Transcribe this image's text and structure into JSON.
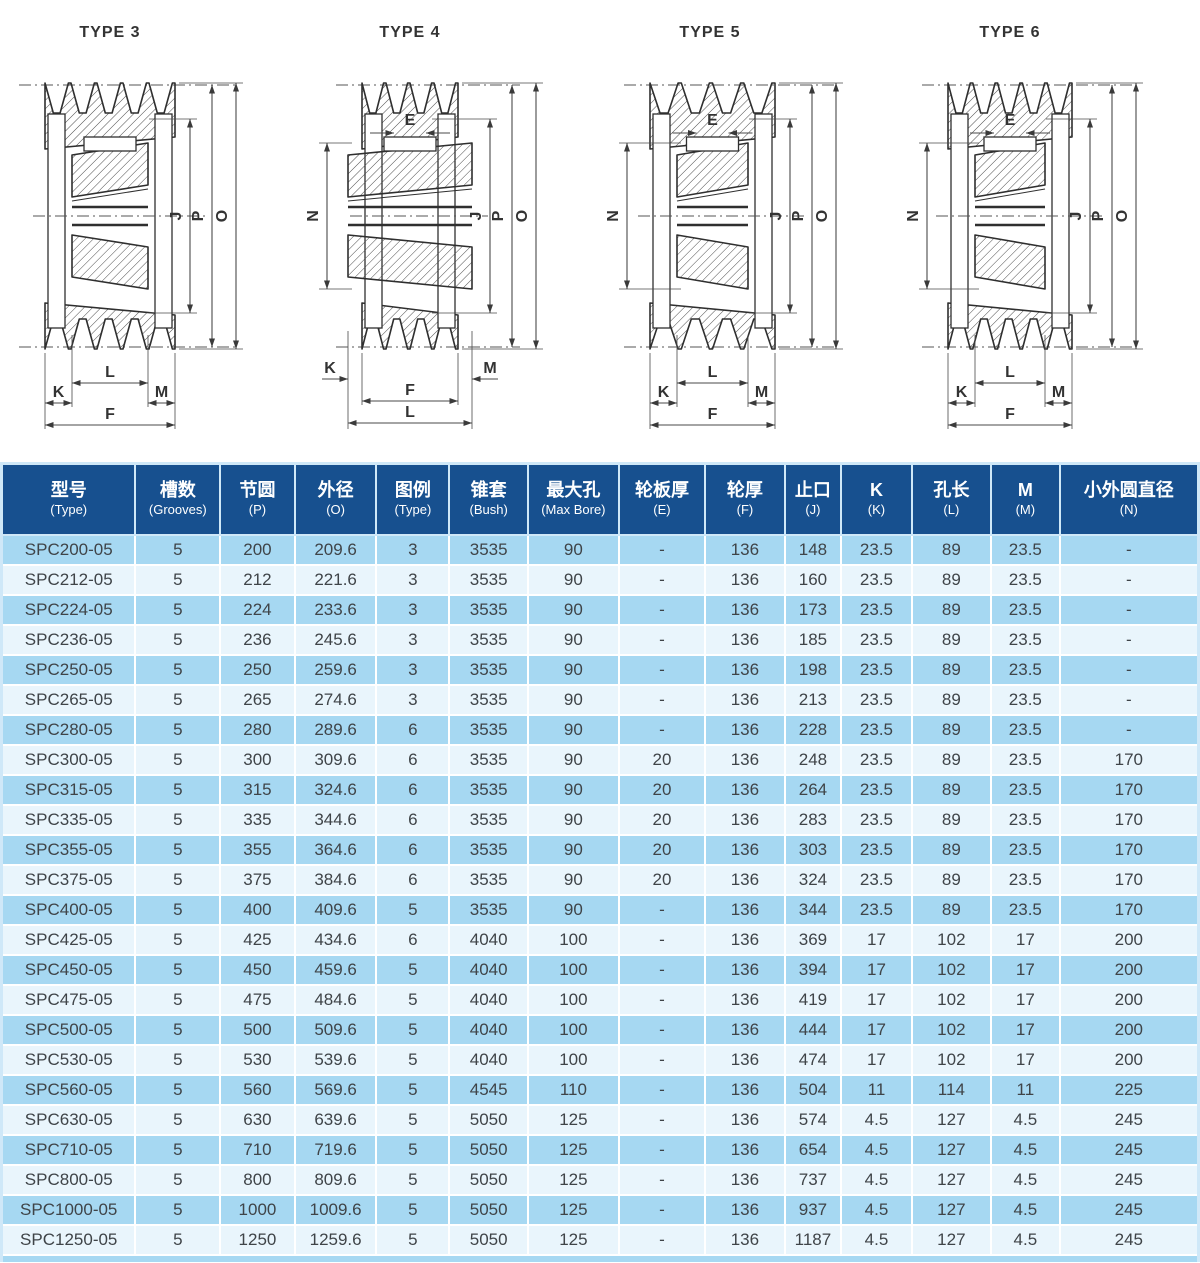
{
  "page": {
    "background": "#ffffff"
  },
  "diagrams": [
    {
      "title": "TYPE 3",
      "dim_right": [
        "J",
        "P",
        "O"
      ],
      "dim_left": "",
      "dim_e": "",
      "dim_bottom": {
        "inner": "L",
        "left": "K",
        "right": "M",
        "full": "F"
      }
    },
    {
      "title": "TYPE 4",
      "dim_right": [
        "J",
        "P",
        "O"
      ],
      "dim_left": "N",
      "dim_e": "E",
      "dim_bottom": {
        "inner": "F",
        "left": "K",
        "right": "M",
        "full": "L"
      }
    },
    {
      "title": "TYPE 5",
      "dim_right": [
        "J",
        "P",
        "O"
      ],
      "dim_left": "N",
      "dim_e": "E",
      "dim_bottom": {
        "inner": "L",
        "left": "K",
        "right": "M",
        "full": "F"
      }
    },
    {
      "title": "TYPE 6",
      "dim_right": [
        "J",
        "P",
        "O"
      ],
      "dim_left": "N",
      "dim_e": "E",
      "dim_bottom": {
        "inner": "L",
        "left": "K",
        "right": "M",
        "full": "F"
      }
    }
  ],
  "table": {
    "columns": [
      {
        "cn": "型号",
        "en": "(Type)"
      },
      {
        "cn": "槽数",
        "en": "(Grooves)"
      },
      {
        "cn": "节圆",
        "en": "(P)"
      },
      {
        "cn": "外径",
        "en": "(O)"
      },
      {
        "cn": "图例",
        "en": "(Type)"
      },
      {
        "cn": "锥套",
        "en": "(Bush)"
      },
      {
        "cn": "最大孔",
        "en": "(Max Bore)"
      },
      {
        "cn": "轮板厚",
        "en": "(E)"
      },
      {
        "cn": "轮厚",
        "en": "(F)"
      },
      {
        "cn": "止口",
        "en": "(J)"
      },
      {
        "cn": "K",
        "en": "(K)"
      },
      {
        "cn": "孔长",
        "en": "(L)"
      },
      {
        "cn": "M",
        "en": "(M)"
      },
      {
        "cn": "小外圆直径",
        "en": "(N)"
      }
    ],
    "rows": [
      [
        "SPC200-05",
        "5",
        "200",
        "209.6",
        "3",
        "3535",
        "90",
        "-",
        "136",
        "148",
        "23.5",
        "89",
        "23.5",
        "-"
      ],
      [
        "SPC212-05",
        "5",
        "212",
        "221.6",
        "3",
        "3535",
        "90",
        "-",
        "136",
        "160",
        "23.5",
        "89",
        "23.5",
        "-"
      ],
      [
        "SPC224-05",
        "5",
        "224",
        "233.6",
        "3",
        "3535",
        "90",
        "-",
        "136",
        "173",
        "23.5",
        "89",
        "23.5",
        "-"
      ],
      [
        "SPC236-05",
        "5",
        "236",
        "245.6",
        "3",
        "3535",
        "90",
        "-",
        "136",
        "185",
        "23.5",
        "89",
        "23.5",
        "-"
      ],
      [
        "SPC250-05",
        "5",
        "250",
        "259.6",
        "3",
        "3535",
        "90",
        "-",
        "136",
        "198",
        "23.5",
        "89",
        "23.5",
        "-"
      ],
      [
        "SPC265-05",
        "5",
        "265",
        "274.6",
        "3",
        "3535",
        "90",
        "-",
        "136",
        "213",
        "23.5",
        "89",
        "23.5",
        "-"
      ],
      [
        "SPC280-05",
        "5",
        "280",
        "289.6",
        "6",
        "3535",
        "90",
        "-",
        "136",
        "228",
        "23.5",
        "89",
        "23.5",
        "-"
      ],
      [
        "SPC300-05",
        "5",
        "300",
        "309.6",
        "6",
        "3535",
        "90",
        "20",
        "136",
        "248",
        "23.5",
        "89",
        "23.5",
        "170"
      ],
      [
        "SPC315-05",
        "5",
        "315",
        "324.6",
        "6",
        "3535",
        "90",
        "20",
        "136",
        "264",
        "23.5",
        "89",
        "23.5",
        "170"
      ],
      [
        "SPC335-05",
        "5",
        "335",
        "344.6",
        "6",
        "3535",
        "90",
        "20",
        "136",
        "283",
        "23.5",
        "89",
        "23.5",
        "170"
      ],
      [
        "SPC355-05",
        "5",
        "355",
        "364.6",
        "6",
        "3535",
        "90",
        "20",
        "136",
        "303",
        "23.5",
        "89",
        "23.5",
        "170"
      ],
      [
        "SPC375-05",
        "5",
        "375",
        "384.6",
        "6",
        "3535",
        "90",
        "20",
        "136",
        "324",
        "23.5",
        "89",
        "23.5",
        "170"
      ],
      [
        "SPC400-05",
        "5",
        "400",
        "409.6",
        "5",
        "3535",
        "90",
        "-",
        "136",
        "344",
        "23.5",
        "89",
        "23.5",
        "170"
      ],
      [
        "SPC425-05",
        "5",
        "425",
        "434.6",
        "6",
        "4040",
        "100",
        "-",
        "136",
        "369",
        "17",
        "102",
        "17",
        "200"
      ],
      [
        "SPC450-05",
        "5",
        "450",
        "459.6",
        "5",
        "4040",
        "100",
        "-",
        "136",
        "394",
        "17",
        "102",
        "17",
        "200"
      ],
      [
        "SPC475-05",
        "5",
        "475",
        "484.6",
        "5",
        "4040",
        "100",
        "-",
        "136",
        "419",
        "17",
        "102",
        "17",
        "200"
      ],
      [
        "SPC500-05",
        "5",
        "500",
        "509.6",
        "5",
        "4040",
        "100",
        "-",
        "136",
        "444",
        "17",
        "102",
        "17",
        "200"
      ],
      [
        "SPC530-05",
        "5",
        "530",
        "539.6",
        "5",
        "4040",
        "100",
        "-",
        "136",
        "474",
        "17",
        "102",
        "17",
        "200"
      ],
      [
        "SPC560-05",
        "5",
        "560",
        "569.6",
        "5",
        "4545",
        "110",
        "-",
        "136",
        "504",
        "11",
        "114",
        "11",
        "225"
      ],
      [
        "SPC630-05",
        "5",
        "630",
        "639.6",
        "5",
        "5050",
        "125",
        "-",
        "136",
        "574",
        "4.5",
        "127",
        "4.5",
        "245"
      ],
      [
        "SPC710-05",
        "5",
        "710",
        "719.6",
        "5",
        "5050",
        "125",
        "-",
        "136",
        "654",
        "4.5",
        "127",
        "4.5",
        "245"
      ],
      [
        "SPC800-05",
        "5",
        "800",
        "809.6",
        "5",
        "5050",
        "125",
        "-",
        "136",
        "737",
        "4.5",
        "127",
        "4.5",
        "245"
      ],
      [
        "SPC1000-05",
        "5",
        "1000",
        "1009.6",
        "5",
        "5050",
        "125",
        "-",
        "136",
        "937",
        "4.5",
        "127",
        "4.5",
        "245"
      ],
      [
        "SPC1250-05",
        "5",
        "1250",
        "1259.6",
        "5",
        "5050",
        "125",
        "-",
        "136",
        "1187",
        "4.5",
        "127",
        "4.5",
        "245"
      ]
    ],
    "colors": {
      "header_bg": "#17508f",
      "row_odd": "#a6d8f2",
      "row_even": "#e9f5fc",
      "header_text": "#ffffff",
      "body_text": "#3f4448",
      "border": "#cfe8f8"
    }
  }
}
